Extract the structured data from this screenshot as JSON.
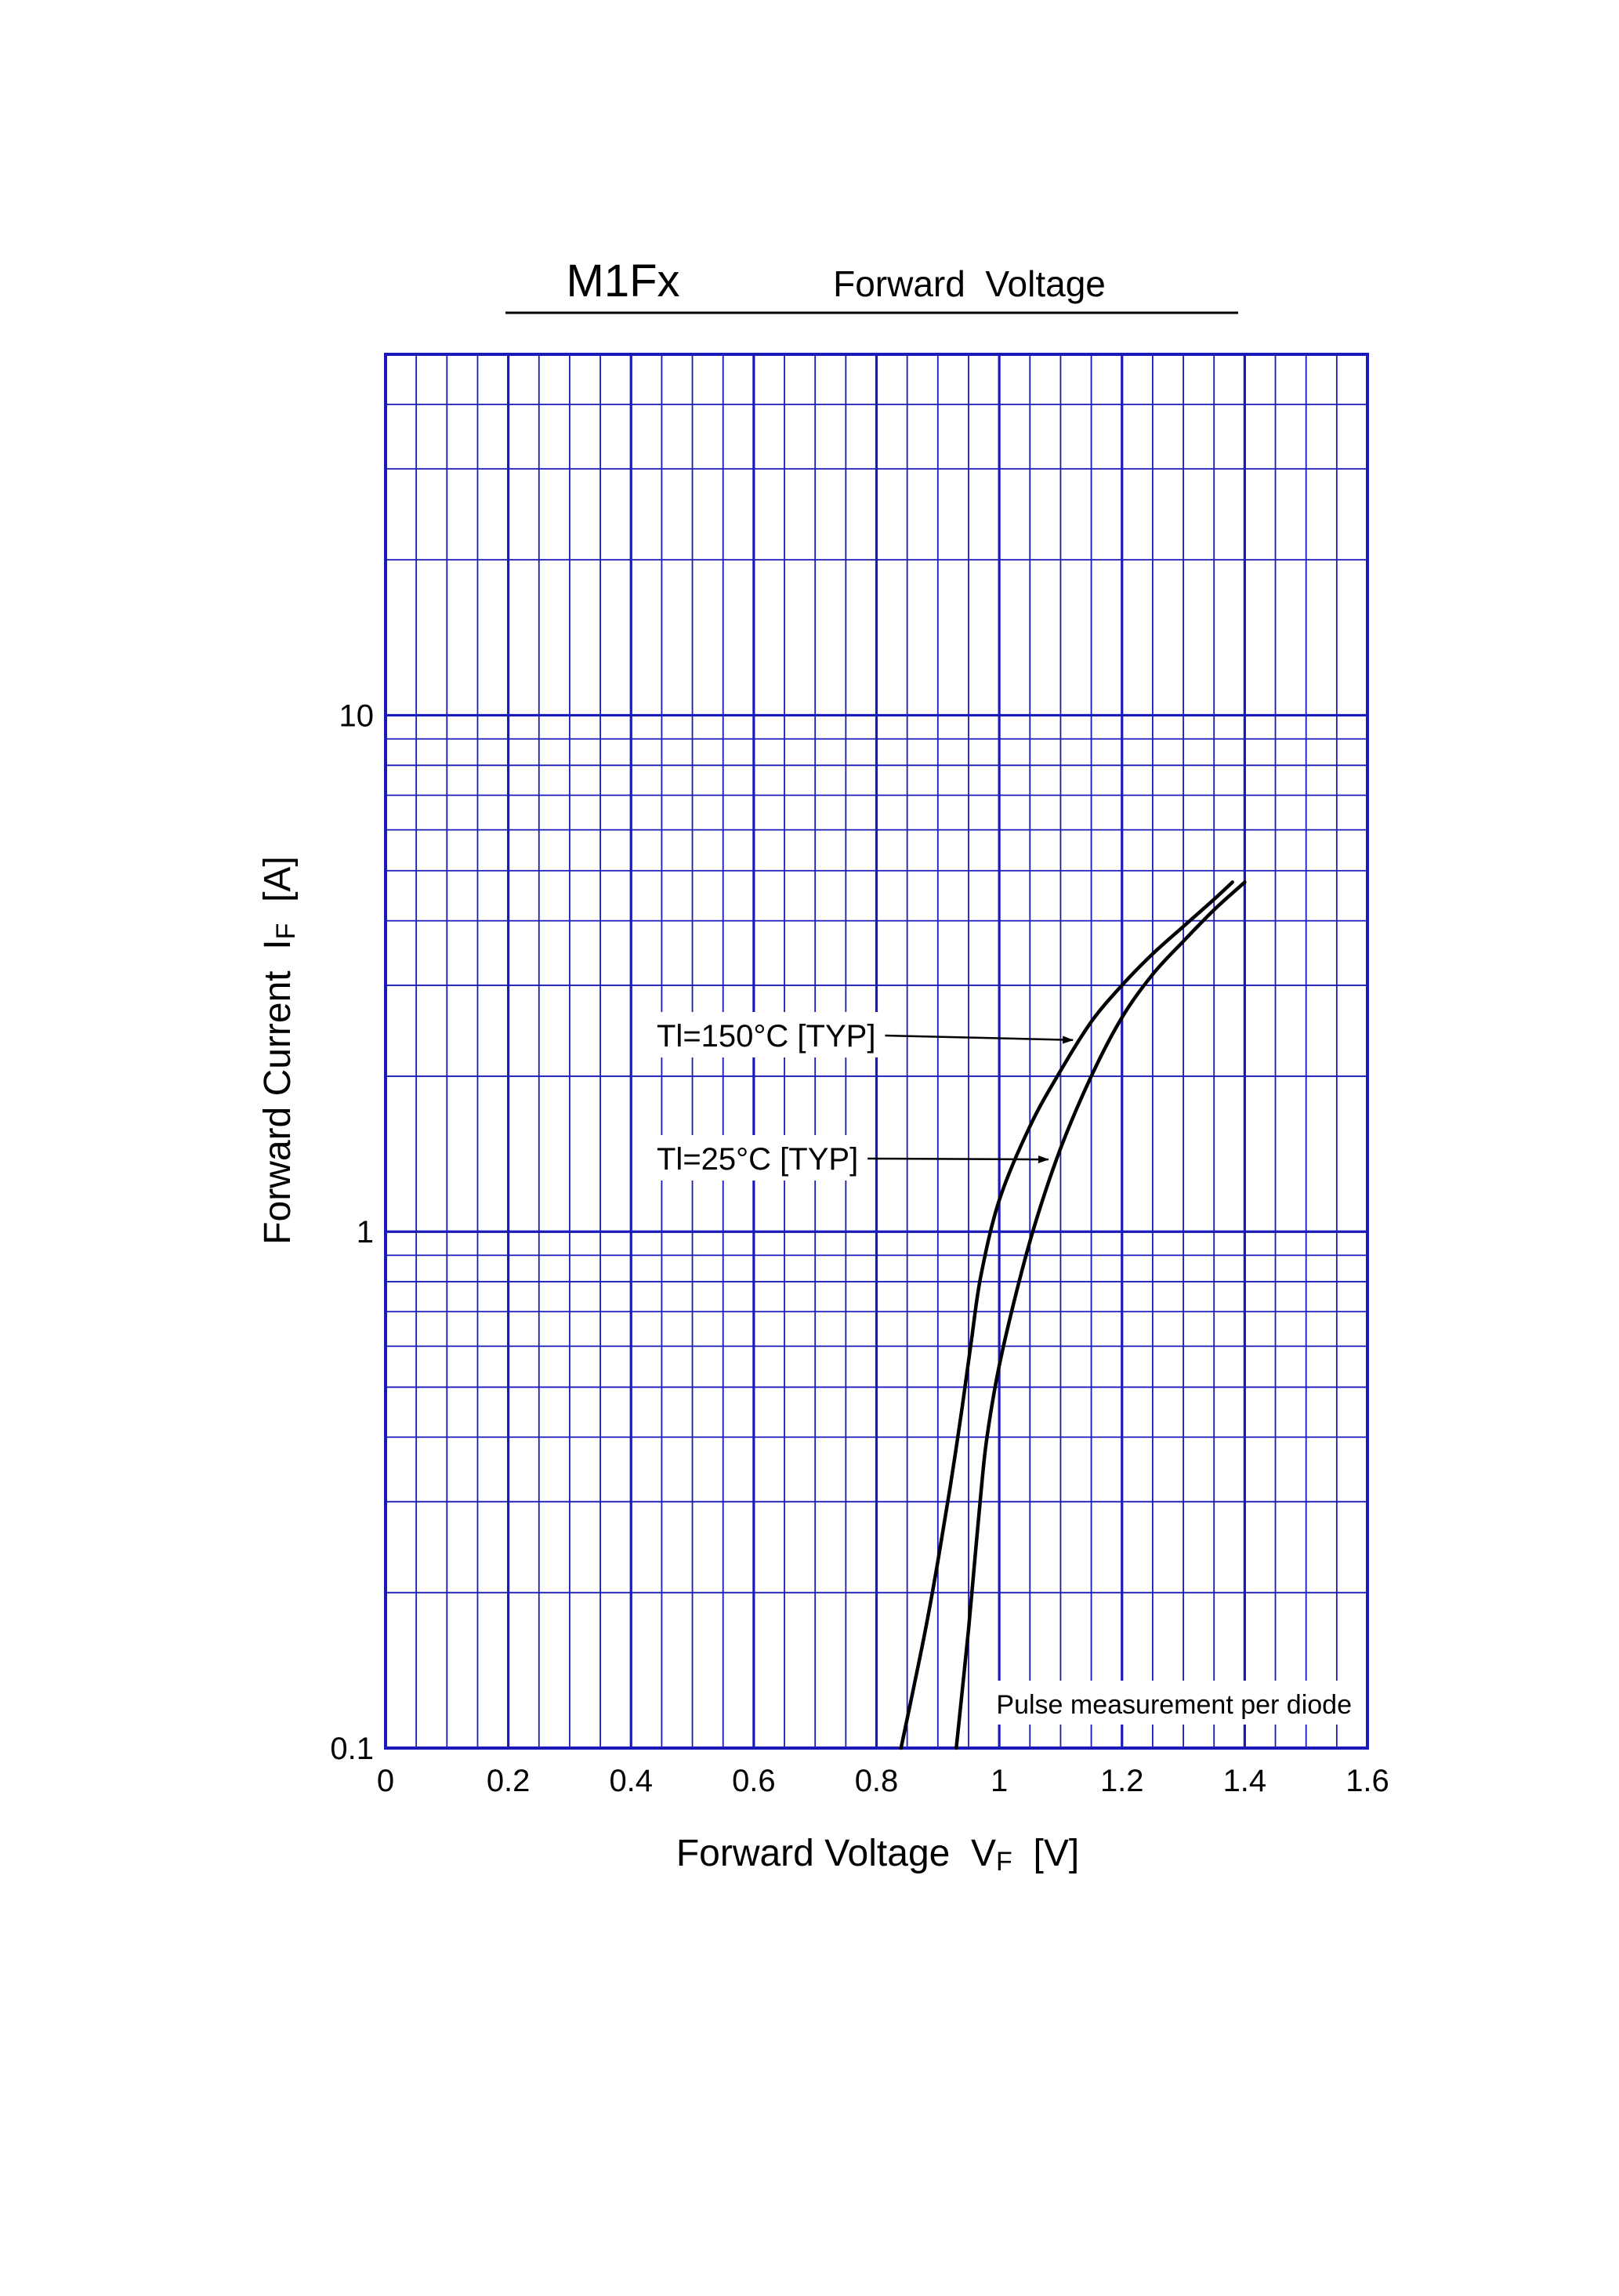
{
  "header": {
    "title": "M1Fx",
    "subtitle": "Forward  Voltage"
  },
  "chart_data": {
    "type": "line",
    "title": "M1Fx",
    "subtitle": "Forward  Voltage",
    "xlabel": {
      "main": "Forward Voltage  V",
      "sub": "F",
      "unit": "[V]"
    },
    "ylabel": {
      "main": "Forward Current  I",
      "sub": "F",
      "unit": "[A]"
    },
    "xlim": [
      0,
      1.6
    ],
    "ylim": [
      0.1,
      50
    ],
    "yscale": "log",
    "xscale": "linear",
    "grid": true,
    "xticks": [
      {
        "value": 0,
        "label": "0"
      },
      {
        "value": 0.2,
        "label": "0.2"
      },
      {
        "value": 0.4,
        "label": "0.4"
      },
      {
        "value": 0.6,
        "label": "0.6"
      },
      {
        "value": 0.8,
        "label": "0.8"
      },
      {
        "value": 1.0,
        "label": "1"
      },
      {
        "value": 1.2,
        "label": "1.2"
      },
      {
        "value": 1.4,
        "label": "1.4"
      },
      {
        "value": 1.6,
        "label": "1.6"
      }
    ],
    "yticks": [
      {
        "value": 0.1,
        "label": "0.1"
      },
      {
        "value": 1,
        "label": "1"
      },
      {
        "value": 10,
        "label": "10"
      }
    ],
    "series": [
      {
        "name": "Tl=150°C [TYP]",
        "x": [
          0.84,
          0.86,
          0.88,
          0.9,
          0.92,
          0.94,
          0.955,
          0.97,
          1.0,
          1.05,
          1.1,
          1.15,
          1.2,
          1.25,
          1.3,
          1.35,
          1.38
        ],
        "y": [
          0.1,
          0.13,
          0.17,
          0.23,
          0.32,
          0.46,
          0.62,
          0.82,
          1.15,
          1.6,
          2.05,
          2.55,
          3.0,
          3.45,
          3.9,
          4.4,
          4.75
        ]
      },
      {
        "name": "Tl=25°C [TYP]",
        "x": [
          0.93,
          0.94,
          0.95,
          0.96,
          0.97,
          0.98,
          1.0,
          1.03,
          1.06,
          1.1,
          1.15,
          1.2,
          1.25,
          1.3,
          1.35,
          1.4
        ],
        "y": [
          0.1,
          0.13,
          0.17,
          0.23,
          0.31,
          0.4,
          0.55,
          0.78,
          1.05,
          1.45,
          2.0,
          2.6,
          3.15,
          3.65,
          4.2,
          4.75
        ]
      }
    ],
    "annotations": [
      {
        "text": "Tl=150°C [TYP]",
        "series": 0,
        "arrow_to": [
          1.12,
          2.35
        ]
      },
      {
        "text": "Tl=25°C [TYP]",
        "series": 1,
        "arrow_to": [
          1.08,
          1.38
        ]
      },
      {
        "text": "Pulse  measurement  per  diode"
      }
    ],
    "colors": {
      "grid": "#1a1ab8",
      "frame": "#1a1ab8",
      "curve": "#000000"
    }
  }
}
